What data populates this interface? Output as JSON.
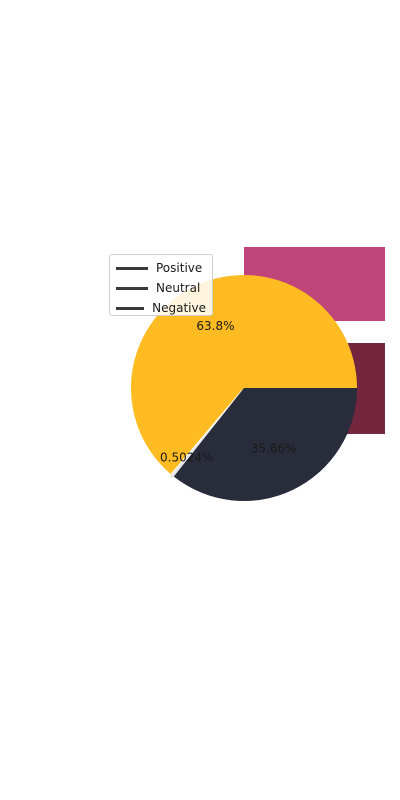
{
  "chart_data": {
    "type": "pie",
    "slices": [
      {
        "label": "Positive",
        "value": 63.8,
        "display": "63.8%",
        "color": "#ffbb22"
      },
      {
        "label": "Neutral",
        "value": 0.5024,
        "display": "0.5024%",
        "color": "#e6e6e6"
      },
      {
        "label": "Negative",
        "value": 35.66,
        "display": "35.66%",
        "color": "#282c3b"
      }
    ],
    "legend": {
      "placement": "upper-left",
      "entries": [
        "Positive",
        "Neutral",
        "Negative"
      ],
      "swatch_color": "#3a3a3a"
    },
    "background_shapes": [
      {
        "color": "#c0457a"
      },
      {
        "color": "#74263f"
      }
    ]
  }
}
